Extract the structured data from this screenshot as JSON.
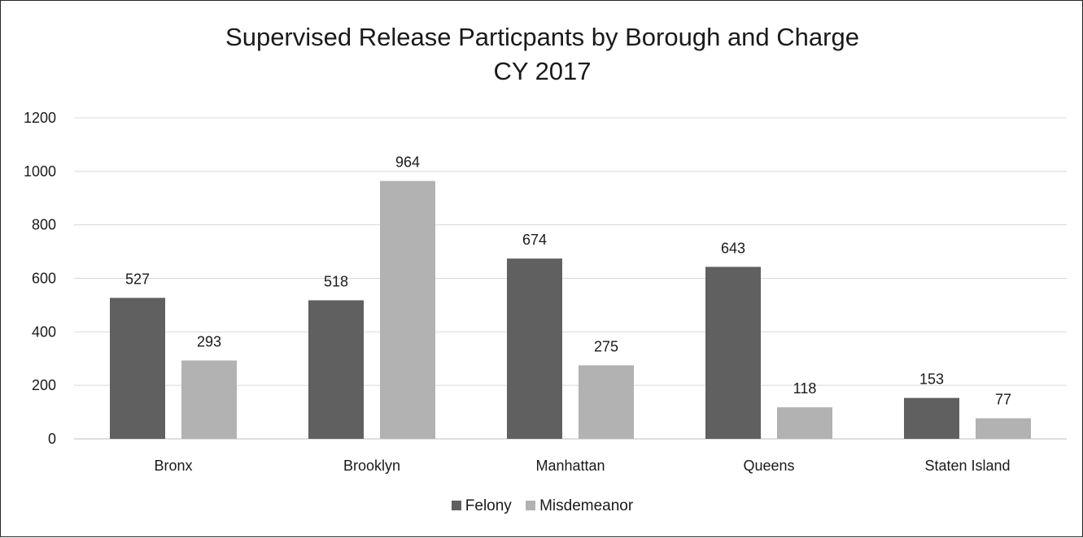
{
  "chart_data": {
    "type": "bar",
    "title": "Supervised Release Particpants by Borough and Charge",
    "subtitle": "CY 2017",
    "categories": [
      "Bronx",
      "Brooklyn",
      "Manhattan",
      "Queens",
      "Staten Island"
    ],
    "series": [
      {
        "name": "Felony",
        "values": [
          527,
          518,
          674,
          643,
          153
        ],
        "color": "#606060"
      },
      {
        "name": "Misdemeanor",
        "values": [
          293,
          964,
          275,
          118,
          77
        ],
        "color": "#b2b2b2"
      }
    ],
    "ylim": [
      0,
      1200
    ],
    "yticks": [
      "0",
      "200",
      "400",
      "600",
      "800",
      "1000",
      "1200"
    ],
    "grid": true,
    "legend_position": "bottom",
    "data_labels": true
  }
}
